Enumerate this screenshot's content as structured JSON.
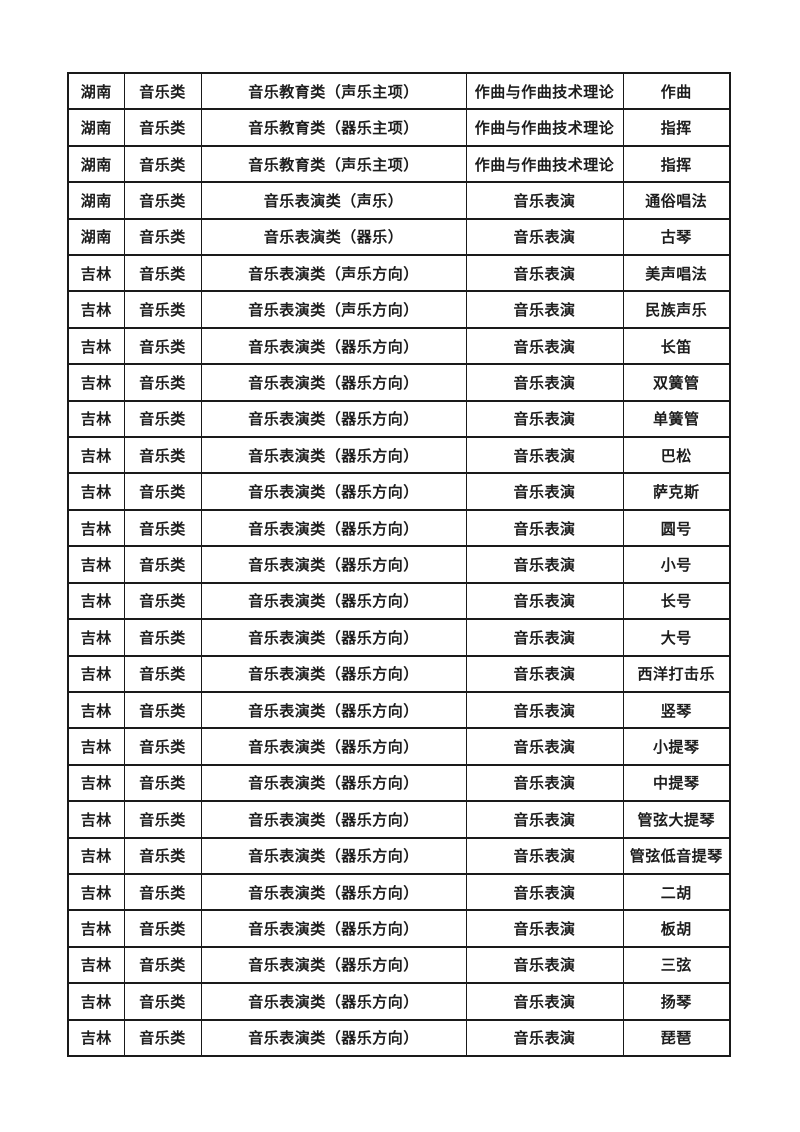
{
  "page": {
    "background": "#ffffff"
  },
  "table": {
    "colors": {
      "border": "#1a1a1a",
      "text": "#1c1c1c"
    },
    "rows": [
      [
        "湖南",
        "音乐类",
        "音乐教育类（声乐主项）",
        "作曲与作曲技术理论",
        "作曲"
      ],
      [
        "湖南",
        "音乐类",
        "音乐教育类（器乐主项）",
        "作曲与作曲技术理论",
        "指挥"
      ],
      [
        "湖南",
        "音乐类",
        "音乐教育类（声乐主项）",
        "作曲与作曲技术理论",
        "指挥"
      ],
      [
        "湖南",
        "音乐类",
        "音乐表演类（声乐）",
        "音乐表演",
        "通俗唱法"
      ],
      [
        "湖南",
        "音乐类",
        "音乐表演类（器乐）",
        "音乐表演",
        "古琴"
      ],
      [
        "吉林",
        "音乐类",
        "音乐表演类（声乐方向）",
        "音乐表演",
        "美声唱法"
      ],
      [
        "吉林",
        "音乐类",
        "音乐表演类（声乐方向）",
        "音乐表演",
        "民族声乐"
      ],
      [
        "吉林",
        "音乐类",
        "音乐表演类（器乐方向）",
        "音乐表演",
        "长笛"
      ],
      [
        "吉林",
        "音乐类",
        "音乐表演类（器乐方向）",
        "音乐表演",
        "双簧管"
      ],
      [
        "吉林",
        "音乐类",
        "音乐表演类（器乐方向）",
        "音乐表演",
        "单簧管"
      ],
      [
        "吉林",
        "音乐类",
        "音乐表演类（器乐方向）",
        "音乐表演",
        "巴松"
      ],
      [
        "吉林",
        "音乐类",
        "音乐表演类（器乐方向）",
        "音乐表演",
        "萨克斯"
      ],
      [
        "吉林",
        "音乐类",
        "音乐表演类（器乐方向）",
        "音乐表演",
        "圆号"
      ],
      [
        "吉林",
        "音乐类",
        "音乐表演类（器乐方向）",
        "音乐表演",
        "小号"
      ],
      [
        "吉林",
        "音乐类",
        "音乐表演类（器乐方向）",
        "音乐表演",
        "长号"
      ],
      [
        "吉林",
        "音乐类",
        "音乐表演类（器乐方向）",
        "音乐表演",
        "大号"
      ],
      [
        "吉林",
        "音乐类",
        "音乐表演类（器乐方向）",
        "音乐表演",
        "西洋打击乐"
      ],
      [
        "吉林",
        "音乐类",
        "音乐表演类（器乐方向）",
        "音乐表演",
        "竖琴"
      ],
      [
        "吉林",
        "音乐类",
        "音乐表演类（器乐方向）",
        "音乐表演",
        "小提琴"
      ],
      [
        "吉林",
        "音乐类",
        "音乐表演类（器乐方向）",
        "音乐表演",
        "中提琴"
      ],
      [
        "吉林",
        "音乐类",
        "音乐表演类（器乐方向）",
        "音乐表演",
        "管弦大提琴"
      ],
      [
        "吉林",
        "音乐类",
        "音乐表演类（器乐方向）",
        "音乐表演",
        "管弦低音提琴"
      ],
      [
        "吉林",
        "音乐类",
        "音乐表演类（器乐方向）",
        "音乐表演",
        "二胡"
      ],
      [
        "吉林",
        "音乐类",
        "音乐表演类（器乐方向）",
        "音乐表演",
        "板胡"
      ],
      [
        "吉林",
        "音乐类",
        "音乐表演类（器乐方向）",
        "音乐表演",
        "三弦"
      ],
      [
        "吉林",
        "音乐类",
        "音乐表演类（器乐方向）",
        "音乐表演",
        "扬琴"
      ],
      [
        "吉林",
        "音乐类",
        "音乐表演类（器乐方向）",
        "音乐表演",
        "琵琶"
      ]
    ]
  }
}
